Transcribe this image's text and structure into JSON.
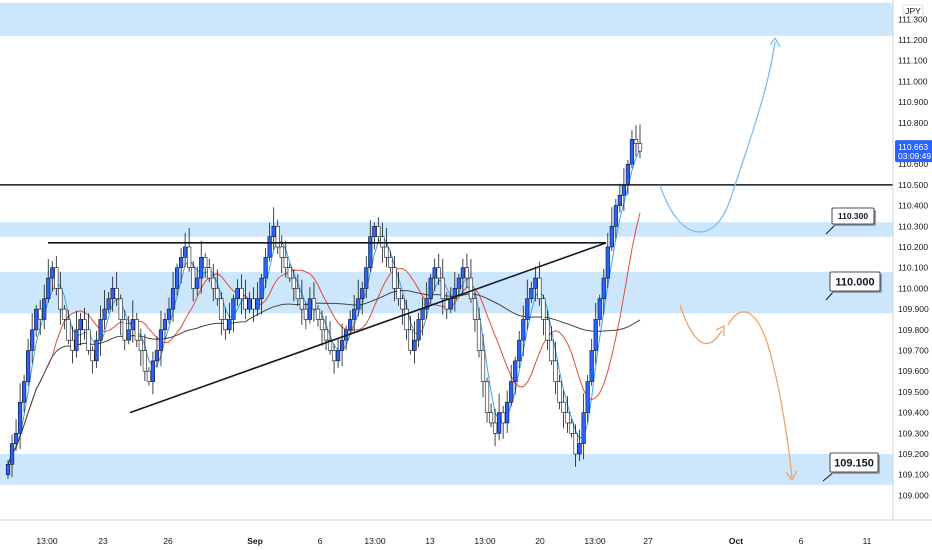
{
  "chart_data": {
    "type": "candlestick",
    "currency": "JPY",
    "ylim": [
      108.95,
      111.38
    ],
    "y_ticks": [
      "111.300",
      "111.200",
      "111.100",
      "111.000",
      "110.900",
      "110.800",
      "110.700",
      "110.600",
      "110.500",
      "110.400",
      "110.300",
      "110.200",
      "110.100",
      "110.000",
      "109.900",
      "109.800",
      "109.700",
      "109.600",
      "109.500",
      "109.400",
      "109.300",
      "109.200",
      "109.100",
      "109.000"
    ],
    "x_ticks": [
      "13:00",
      "23",
      "26",
      "Sep",
      "6",
      "13:00",
      "13",
      "13:00",
      "20",
      "13:00",
      "27",
      "Oct",
      "6",
      "11"
    ],
    "current_price": {
      "value": 110.663,
      "label": "110.663",
      "countdown": "03:09:49"
    },
    "zones": [
      {
        "from": 111.22,
        "to": 111.42
      },
      {
        "from": 110.25,
        "to": 110.32
      },
      {
        "from": 109.88,
        "to": 110.08
      },
      {
        "from": 109.05,
        "to": 109.2
      }
    ],
    "horizontal_line": 110.5,
    "annotations": [
      {
        "label": "110.300",
        "price": 110.3
      },
      {
        "label": "110.000",
        "price": 110.0
      },
      {
        "label": "109.150",
        "price": 109.15
      }
    ],
    "triangle": {
      "top": [
        110.22,
        110.22
      ],
      "bottom": [
        109.4,
        110.22
      ]
    },
    "projections": [
      "bullish",
      "bearish"
    ],
    "colors": {
      "up": "#2962ff",
      "down": "#ffffff",
      "zone": "#bbdefb",
      "fast_ma": "#3fa3e8",
      "mid_ma": "#e34b3b",
      "slow_ma": "#454545",
      "bull_path": "#7fbff0",
      "bear_path": "#f2a46a"
    }
  }
}
